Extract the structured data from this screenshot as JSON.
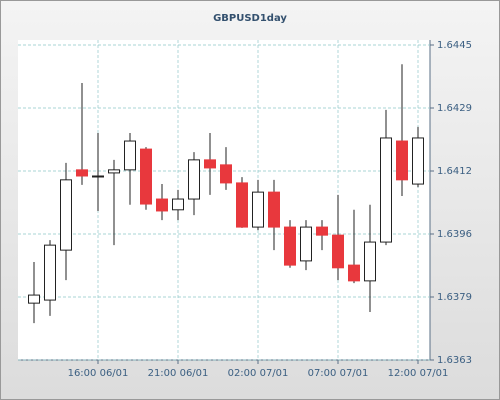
{
  "chart_data": {
    "type": "candlestick",
    "title": "GBPUSD1day",
    "categories": [
      null,
      null,
      null,
      null,
      "16:00 06/01",
      null,
      null,
      null,
      null,
      "21:00 06/01",
      null,
      null,
      null,
      null,
      "02:00 07/01",
      null,
      null,
      null,
      null,
      "07:00 07/01",
      null,
      null,
      null,
      null,
      "12:00 07/01"
    ],
    "series": [
      {
        "up_color": "#ffffff",
        "down_color": "#e8383d",
        "open": [
          1.63778,
          1.63786,
          1.63916,
          1.64125,
          1.64107,
          1.64117,
          1.64125,
          1.64179,
          1.64049,
          1.64021,
          1.64049,
          1.64151,
          1.64138,
          1.64091,
          1.63976,
          1.64067,
          1.63976,
          1.63888,
          1.63976,
          1.63955,
          1.63877,
          1.63836,
          1.63937,
          1.642,
          1.64088
        ],
        "high": [
          1.63885,
          1.63942,
          1.64143,
          1.64351,
          1.64221,
          1.64151,
          1.64221,
          1.64184,
          1.64088,
          1.64073,
          1.64171,
          1.64221,
          1.64184,
          1.64106,
          1.64099,
          1.64099,
          1.63994,
          1.63994,
          1.63994,
          1.6406,
          1.64021,
          1.64034,
          1.64281,
          1.644,
          1.64237
        ],
        "low": [
          1.63726,
          1.63745,
          1.63838,
          1.64086,
          1.64018,
          1.63929,
          1.64034,
          1.64021,
          1.63994,
          1.63994,
          1.64007,
          1.6406,
          1.64073,
          1.63974,
          1.63968,
          1.63916,
          1.6387,
          1.63864,
          1.63916,
          1.63838,
          1.6383,
          1.63755,
          1.63929,
          1.64057,
          1.6408
        ],
        "close": [
          1.63799,
          1.63929,
          1.64099,
          1.64109,
          1.64109,
          1.64125,
          1.642,
          1.64036,
          1.64018,
          1.64049,
          1.64151,
          1.6413,
          1.64091,
          1.63976,
          1.64067,
          1.63976,
          1.63877,
          1.63976,
          1.63955,
          1.6387,
          1.63836,
          1.63937,
          1.64208,
          1.64099,
          1.64208
        ]
      }
    ],
    "ylim": [
      1.6363,
      1.6445
    ],
    "yticks": [
      1.6363,
      {
        "value": 1.63794,
        "label": "1.6379"
      },
      {
        "value": 1.63958,
        "label": "1.6396"
      },
      {
        "value": 1.64122,
        "label": "1.6412"
      },
      {
        "value": 1.64286,
        "label": "1.6429"
      },
      1.6445
    ],
    "grid": true
  }
}
